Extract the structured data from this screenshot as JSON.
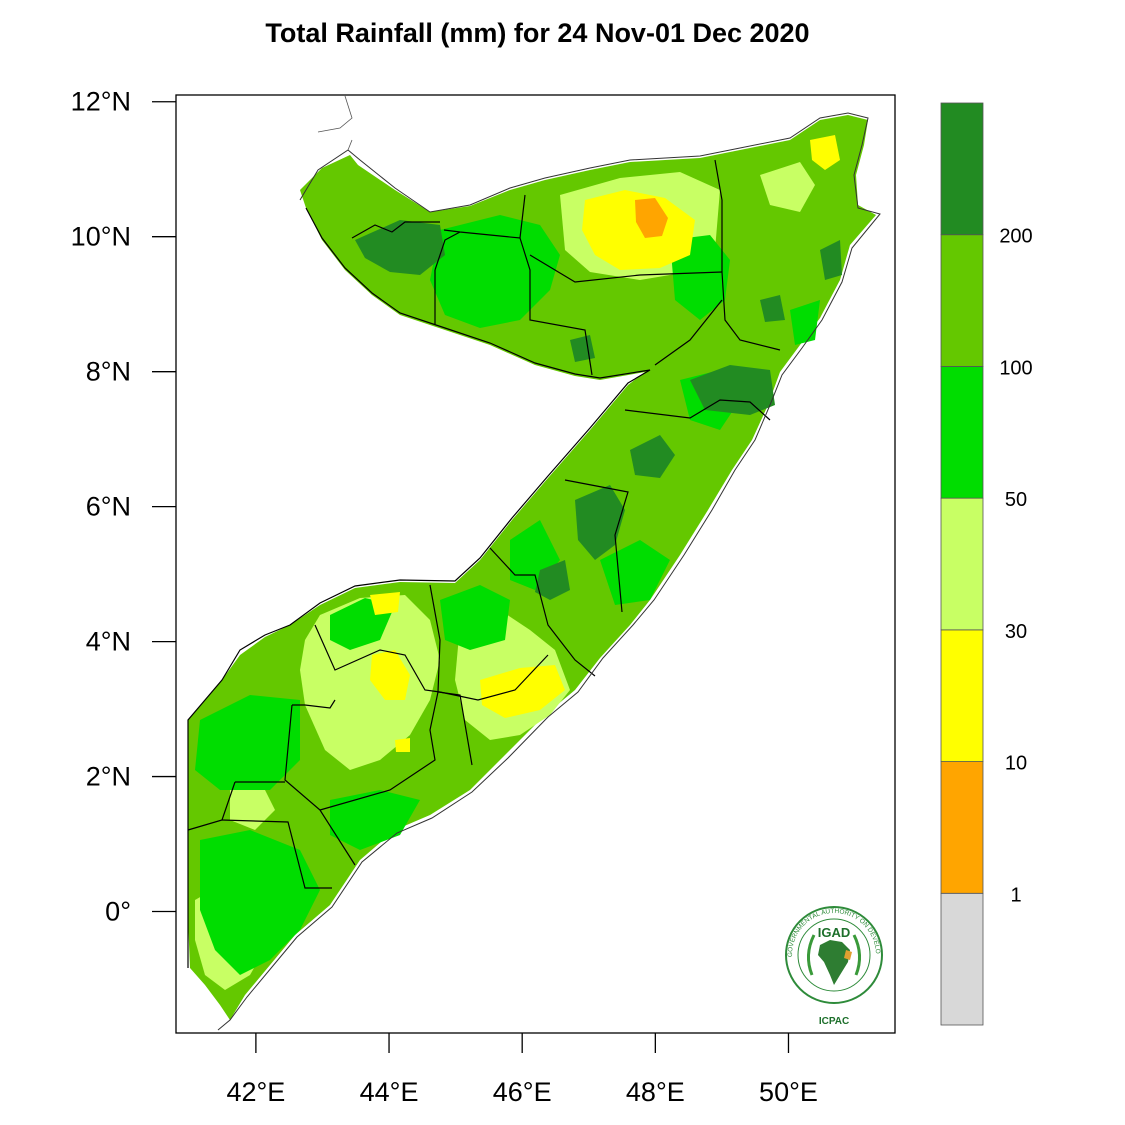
{
  "title": "Total Rainfall (mm) for 24 Nov-01 Dec 2020",
  "map": {
    "lat_ticks": [
      "12°N",
      "10°N",
      "8°N",
      "6°N",
      "4°N",
      "2°N",
      "0°"
    ],
    "lon_ticks": [
      "42°E",
      "44°E",
      "46°E",
      "48°E",
      "50°E"
    ],
    "lon_range": [
      40.8,
      51.6
    ],
    "lat_range": [
      -1.8,
      12.1
    ],
    "lat_tick_values": [
      12,
      10,
      8,
      6,
      4,
      2,
      0
    ],
    "lon_tick_values": [
      42,
      44,
      46,
      48,
      50
    ]
  },
  "colorbar": {
    "bins": [
      {
        "label": "",
        "color": "#d8d8d8"
      },
      {
        "label": "1",
        "color": "#ffa500"
      },
      {
        "label": "10",
        "color": "#ffff00"
      },
      {
        "label": "30",
        "color": "#c8ff64"
      },
      {
        "label": "50",
        "color": "#00dd00"
      },
      {
        "label": "100",
        "color": "#64c800"
      },
      {
        "label": "200",
        "color": "#228b22"
      }
    ]
  },
  "logo": {
    "name": "IGAD",
    "ring_text": "INTERGOVERNMENTAL AUTHORITY ON DEVELOPMENT",
    "caption": "ICPAC"
  }
}
